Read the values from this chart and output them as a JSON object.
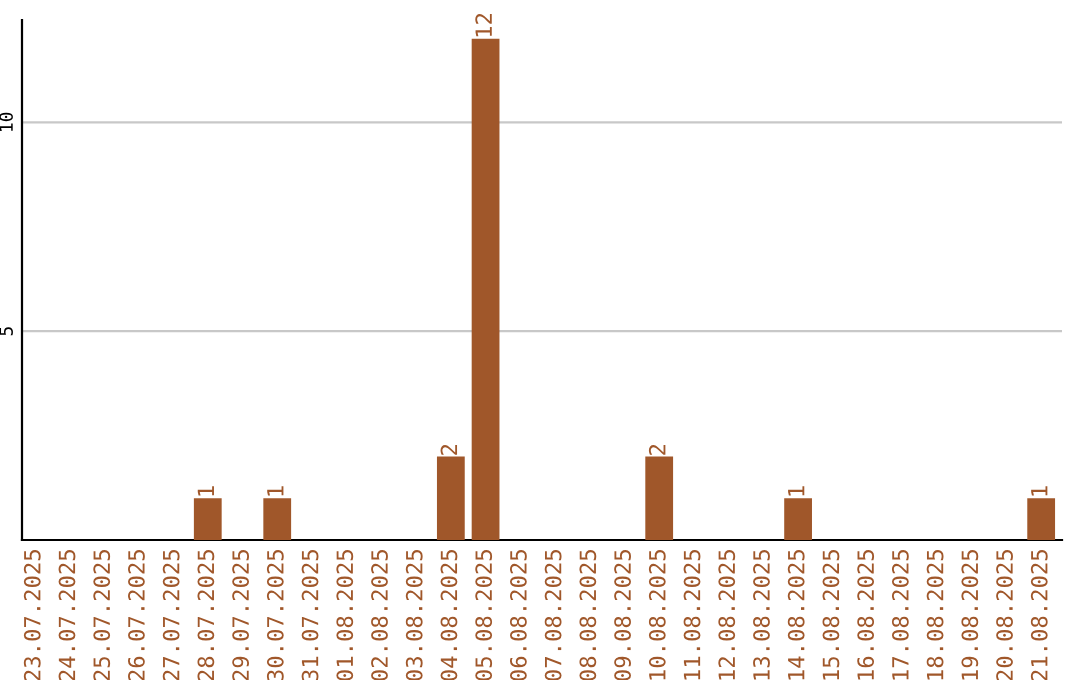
{
  "chart_data": {
    "type": "bar",
    "categories": [
      "23.07.2025",
      "24.07.2025",
      "25.07.2025",
      "26.07.2025",
      "27.07.2025",
      "28.07.2025",
      "29.07.2025",
      "30.07.2025",
      "31.07.2025",
      "01.08.2025",
      "02.08.2025",
      "03.08.2025",
      "04.08.2025",
      "05.08.2025",
      "06.08.2025",
      "07.08.2025",
      "08.08.2025",
      "09.08.2025",
      "10.08.2025",
      "11.08.2025",
      "12.08.2025",
      "13.08.2025",
      "14.08.2025",
      "15.08.2025",
      "16.08.2025",
      "17.08.2025",
      "18.08.2025",
      "19.08.2025",
      "20.08.2025",
      "21.08.2025"
    ],
    "values": [
      0,
      0,
      0,
      0,
      0,
      1,
      0,
      1,
      0,
      0,
      0,
      0,
      2,
      12,
      0,
      0,
      0,
      0,
      2,
      0,
      0,
      0,
      1,
      0,
      0,
      0,
      0,
      0,
      0,
      1
    ],
    "value_labels": [
      null,
      null,
      null,
      null,
      null,
      "1",
      null,
      "1",
      null,
      null,
      null,
      null,
      "2",
      "12",
      null,
      null,
      null,
      null,
      "2",
      null,
      null,
      null,
      "1",
      null,
      null,
      null,
      null,
      null,
      null,
      "1"
    ],
    "color": "#a0572a",
    "ylim": [
      0,
      12.45
    ],
    "yticks": [
      5,
      10
    ],
    "grid": "y",
    "legend": false
  }
}
